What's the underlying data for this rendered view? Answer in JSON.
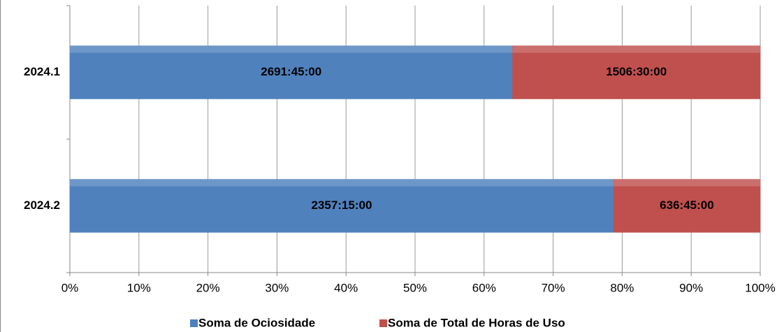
{
  "chart_data": {
    "type": "bar",
    "orientation": "horizontal",
    "stacking": "percent",
    "categories": [
      "2024.1",
      "2024.2"
    ],
    "series": [
      {
        "name": "Soma de Ociosidade",
        "color": "#4f81bd",
        "values": [
          2691.75,
          2357.25
        ],
        "value_labels": [
          "2691:45:00",
          "2357:15:00"
        ]
      },
      {
        "name": "Soma de Total de Horas de Uso",
        "color": "#c0504d",
        "values": [
          1506.5,
          636.75
        ],
        "value_labels": [
          "1506:30:00",
          "636:45:00"
        ]
      }
    ],
    "xlim": [
      0,
      100
    ],
    "xticks": [
      {
        "value": 0,
        "label": "0%"
      },
      {
        "value": 10,
        "label": "10%"
      },
      {
        "value": 20,
        "label": "20%"
      },
      {
        "value": 30,
        "label": "30%"
      },
      {
        "value": 40,
        "label": "40%"
      },
      {
        "value": 50,
        "label": "50%"
      },
      {
        "value": 60,
        "label": "60%"
      },
      {
        "value": 70,
        "label": "70%"
      },
      {
        "value": 80,
        "label": "80%"
      },
      {
        "value": 90,
        "label": "90%"
      },
      {
        "value": 100,
        "label": "100%"
      }
    ],
    "grid": true,
    "legend": "bottom"
  }
}
